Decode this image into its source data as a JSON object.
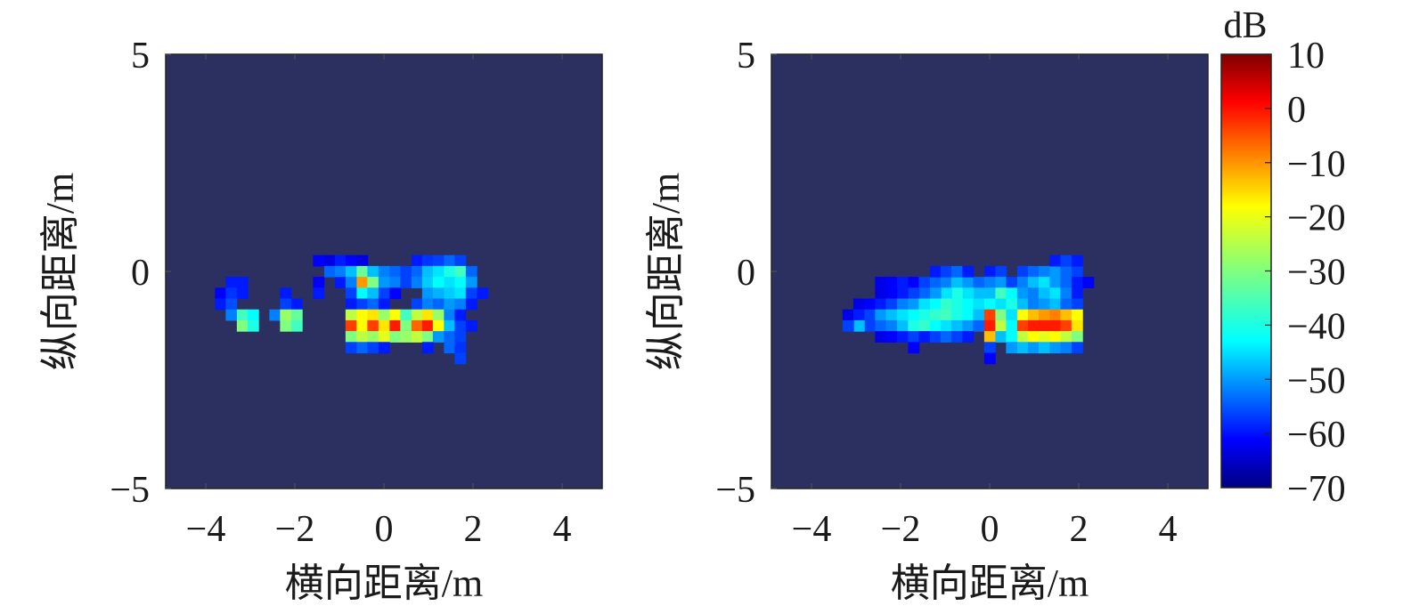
{
  "chart_data": [
    {
      "type": "heatmap",
      "xlabel": "横向距离/m",
      "ylabel": "纵向距离/m",
      "xlim": [
        -4.9,
        4.9
      ],
      "ylim": [
        -5,
        5
      ],
      "xticks": [
        -4,
        -2,
        0,
        2,
        4
      ],
      "xtick_labels": [
        "−4",
        "−2",
        "0",
        "2",
        "4"
      ],
      "yticks": [
        -5,
        0,
        5
      ],
      "ytick_labels": [
        "−5",
        "0",
        "5"
      ],
      "cell_size": [
        0.245,
        0.25
      ],
      "background_db": -70,
      "cells": [
        [
          -3.43,
          -0.25,
          -58
        ],
        [
          -3.18,
          -0.25,
          -58
        ],
        [
          -3.67,
          -0.5,
          -60
        ],
        [
          -3.43,
          -0.5,
          -56
        ],
        [
          -3.18,
          -0.5,
          -58
        ],
        [
          -3.67,
          -0.75,
          -58
        ],
        [
          -3.43,
          -0.75,
          -54
        ],
        [
          -3.43,
          -1.0,
          -50
        ],
        [
          -3.18,
          -1.0,
          -35
        ],
        [
          -2.94,
          -1.0,
          -40
        ],
        [
          -3.18,
          -1.25,
          -30
        ],
        [
          -2.94,
          -1.25,
          -38
        ],
        [
          -2.21,
          -0.5,
          -58
        ],
        [
          -2.21,
          -0.75,
          -55
        ],
        [
          -1.96,
          -0.75,
          -58
        ],
        [
          -2.45,
          -1.0,
          -50
        ],
        [
          -2.21,
          -1.0,
          -28
        ],
        [
          -1.96,
          -1.0,
          -32
        ],
        [
          -2.21,
          -1.25,
          -30
        ],
        [
          -1.96,
          -1.25,
          -35
        ],
        [
          -1.47,
          -0.25,
          -60
        ],
        [
          -1.47,
          -0.5,
          -58
        ],
        [
          -1.47,
          0.25,
          -60
        ],
        [
          -1.22,
          0.25,
          -62
        ],
        [
          -0.98,
          0.25,
          -58
        ],
        [
          -0.74,
          0.25,
          -60
        ],
        [
          -0.49,
          0.25,
          -62
        ],
        [
          -1.22,
          0.0,
          -52
        ],
        [
          -0.98,
          0.0,
          -50
        ],
        [
          -0.74,
          0.0,
          -45
        ],
        [
          -0.49,
          0.0,
          -32
        ],
        [
          -0.25,
          0.0,
          -45
        ],
        [
          0.0,
          0.0,
          -50
        ],
        [
          0.25,
          0.0,
          -52
        ],
        [
          0.49,
          0.0,
          -55
        ],
        [
          -0.98,
          -0.25,
          -58
        ],
        [
          -0.74,
          -0.25,
          -50
        ],
        [
          -0.49,
          -0.25,
          -12
        ],
        [
          -0.25,
          -0.25,
          -30
        ],
        [
          0.0,
          -0.25,
          -48
        ],
        [
          0.25,
          -0.25,
          -50
        ],
        [
          0.49,
          -0.25,
          -55
        ],
        [
          -0.74,
          -0.5,
          -55
        ],
        [
          -0.49,
          -0.5,
          -40
        ],
        [
          -0.25,
          -0.5,
          -45
        ],
        [
          0.0,
          -0.5,
          -55
        ],
        [
          0.25,
          -0.5,
          -60
        ],
        [
          -0.74,
          -0.75,
          -58
        ],
        [
          -0.49,
          -0.75,
          -55
        ],
        [
          -0.25,
          -0.75,
          -52
        ],
        [
          0.0,
          -0.75,
          -58
        ],
        [
          0.74,
          0.25,
          -58
        ],
        [
          0.98,
          0.25,
          -56
        ],
        [
          1.22,
          0.25,
          -55
        ],
        [
          1.47,
          0.25,
          -52
        ],
        [
          1.71,
          0.25,
          -55
        ],
        [
          0.74,
          0.0,
          -52
        ],
        [
          0.98,
          0.0,
          -45
        ],
        [
          1.22,
          0.0,
          -42
        ],
        [
          1.47,
          0.0,
          -38
        ],
        [
          1.71,
          0.0,
          -35
        ],
        [
          1.96,
          0.0,
          -52
        ],
        [
          0.74,
          -0.25,
          -50
        ],
        [
          0.98,
          -0.25,
          -44
        ],
        [
          1.22,
          -0.25,
          -40
        ],
        [
          1.47,
          -0.25,
          -42
        ],
        [
          1.71,
          -0.25,
          -40
        ],
        [
          1.96,
          -0.25,
          -48
        ],
        [
          0.98,
          -0.5,
          -48
        ],
        [
          1.22,
          -0.5,
          -46
        ],
        [
          1.47,
          -0.5,
          -44
        ],
        [
          1.71,
          -0.5,
          -42
        ],
        [
          1.96,
          -0.5,
          -55
        ],
        [
          2.21,
          -0.5,
          -58
        ],
        [
          0.74,
          -0.75,
          -55
        ],
        [
          0.98,
          -0.75,
          -50
        ],
        [
          1.22,
          -0.75,
          -52
        ],
        [
          1.47,
          -0.75,
          -48
        ],
        [
          1.71,
          -0.75,
          -50
        ],
        [
          1.96,
          -0.75,
          -58
        ],
        [
          -0.74,
          -1.0,
          -25
        ],
        [
          -0.49,
          -1.0,
          -20
        ],
        [
          -0.25,
          -1.0,
          -18
        ],
        [
          0.0,
          -1.0,
          -28
        ],
        [
          0.25,
          -1.0,
          -20
        ],
        [
          0.49,
          -1.0,
          -35
        ],
        [
          0.74,
          -1.0,
          -25
        ],
        [
          0.98,
          -1.0,
          -18
        ],
        [
          1.22,
          -1.0,
          -28
        ],
        [
          1.47,
          -1.0,
          -50
        ],
        [
          -0.74,
          -1.25,
          -5
        ],
        [
          -0.49,
          -1.25,
          -20
        ],
        [
          -0.25,
          -1.25,
          -5
        ],
        [
          0.0,
          -1.25,
          -18
        ],
        [
          0.25,
          -1.25,
          -2
        ],
        [
          0.49,
          -1.25,
          -30
        ],
        [
          0.74,
          -1.25,
          -8
        ],
        [
          0.98,
          -1.25,
          -2
        ],
        [
          1.22,
          -1.25,
          -20
        ],
        [
          1.47,
          -1.25,
          -45
        ],
        [
          -0.74,
          -1.5,
          -30
        ],
        [
          -0.49,
          -1.5,
          -25
        ],
        [
          -0.25,
          -1.5,
          -28
        ],
        [
          0.0,
          -1.5,
          -22
        ],
        [
          0.25,
          -1.5,
          -30
        ],
        [
          0.49,
          -1.5,
          -28
        ],
        [
          0.74,
          -1.5,
          -25
        ],
        [
          0.98,
          -1.5,
          -30
        ],
        [
          1.22,
          -1.5,
          -48
        ],
        [
          1.47,
          -1.5,
          -52
        ],
        [
          1.71,
          -1.5,
          -55
        ],
        [
          -0.74,
          -1.75,
          -55
        ],
        [
          -0.49,
          -1.75,
          -52
        ],
        [
          -0.25,
          -1.75,
          -55
        ],
        [
          0.0,
          -1.75,
          -58
        ],
        [
          0.98,
          -1.75,
          -58
        ],
        [
          1.47,
          -1.75,
          -52
        ],
        [
          1.71,
          -1.75,
          -56
        ],
        [
          1.71,
          -2.0,
          -55
        ],
        [
          1.71,
          -1.25,
          -55
        ],
        [
          1.96,
          -1.25,
          -58
        ],
        [
          1.71,
          -1.0,
          -58
        ]
      ]
    },
    {
      "type": "heatmap",
      "xlabel": "横向距离/m",
      "ylabel": "纵向距离/m",
      "xlim": [
        -4.9,
        4.9
      ],
      "ylim": [
        -5,
        5
      ],
      "xticks": [
        -4,
        -2,
        0,
        2,
        4
      ],
      "xtick_labels": [
        "−4",
        "−2",
        "0",
        "2",
        "4"
      ],
      "yticks": [
        -5,
        0,
        5
      ],
      "ytick_labels": [
        "−5",
        "0",
        "5"
      ],
      "cell_size": [
        0.245,
        0.25
      ],
      "background_db": -70,
      "cells": [
        [
          -2.45,
          -0.25,
          -62
        ],
        [
          -2.21,
          -0.25,
          -60
        ],
        [
          -1.96,
          -0.25,
          -58
        ],
        [
          -1.71,
          -0.25,
          -60
        ],
        [
          -1.47,
          -0.25,
          -55
        ],
        [
          -1.22,
          -0.25,
          -52
        ],
        [
          -0.98,
          -0.25,
          -50
        ],
        [
          -0.74,
          -0.25,
          -45
        ],
        [
          -0.49,
          -0.25,
          -48
        ],
        [
          -0.25,
          -0.25,
          -52
        ],
        [
          -1.22,
          0.0,
          -58
        ],
        [
          -0.98,
          0.0,
          -55
        ],
        [
          -0.74,
          0.0,
          -52
        ],
        [
          -0.49,
          0.0,
          -58
        ],
        [
          -0.25,
          -0.5,
          -45
        ],
        [
          -0.49,
          -0.5,
          -42
        ],
        [
          -0.74,
          -0.5,
          -38
        ],
        [
          -0.98,
          -0.5,
          -42
        ],
        [
          -1.22,
          -0.5,
          -48
        ],
        [
          -1.47,
          -0.5,
          -52
        ],
        [
          -1.71,
          -0.5,
          -55
        ],
        [
          -1.96,
          -0.5,
          -58
        ],
        [
          -2.21,
          -0.5,
          -60
        ],
        [
          -2.45,
          -0.5,
          -62
        ],
        [
          -2.94,
          -0.75,
          -62
        ],
        [
          -2.69,
          -0.75,
          -60
        ],
        [
          -2.45,
          -0.75,
          -58
        ],
        [
          -2.21,
          -0.75,
          -55
        ],
        [
          -1.96,
          -0.75,
          -50
        ],
        [
          -1.71,
          -0.75,
          -48
        ],
        [
          -1.47,
          -0.75,
          -42
        ],
        [
          -1.22,
          -0.75,
          -40
        ],
        [
          -0.98,
          -0.75,
          -36
        ],
        [
          -0.74,
          -0.75,
          -38
        ],
        [
          -0.49,
          -0.75,
          -40
        ],
        [
          -0.25,
          -0.75,
          -42
        ],
        [
          -3.18,
          -1.0,
          -62
        ],
        [
          -2.94,
          -1.0,
          -58
        ],
        [
          -2.69,
          -1.0,
          -55
        ],
        [
          -2.45,
          -1.0,
          -48
        ],
        [
          -2.21,
          -1.0,
          -45
        ],
        [
          -1.96,
          -1.0,
          -42
        ],
        [
          -1.71,
          -1.0,
          -40
        ],
        [
          -1.47,
          -1.0,
          -38
        ],
        [
          -1.22,
          -1.0,
          -36
        ],
        [
          -0.98,
          -1.0,
          -35
        ],
        [
          -0.74,
          -1.0,
          -38
        ],
        [
          -0.49,
          -1.0,
          -40
        ],
        [
          -0.25,
          -1.0,
          -45
        ],
        [
          -2.94,
          -1.25,
          -60
        ],
        [
          -2.69,
          -1.25,
          -55
        ],
        [
          -2.45,
          -1.25,
          -52
        ],
        [
          -2.21,
          -1.25,
          -50
        ],
        [
          -1.96,
          -1.25,
          -45
        ],
        [
          -1.71,
          -1.25,
          -38
        ],
        [
          -1.47,
          -1.25,
          -36
        ],
        [
          -1.22,
          -1.25,
          -40
        ],
        [
          -0.98,
          -1.25,
          -42
        ],
        [
          -0.74,
          -1.25,
          -45
        ],
        [
          -0.49,
          -1.25,
          -48
        ],
        [
          -0.25,
          -1.25,
          -52
        ],
        [
          -2.45,
          -1.5,
          -62
        ],
        [
          -2.21,
          -1.5,
          -60
        ],
        [
          -1.96,
          -1.5,
          -58
        ],
        [
          -1.71,
          -1.5,
          -55
        ],
        [
          -1.47,
          -1.5,
          -58
        ],
        [
          -1.22,
          -1.5,
          -55
        ],
        [
          -0.98,
          -1.5,
          -52
        ],
        [
          -0.74,
          -1.5,
          -55
        ],
        [
          -0.49,
          -1.5,
          -58
        ],
        [
          -1.71,
          -1.75,
          -60
        ],
        [
          -2.94,
          -1.25,
          -45
        ],
        [
          -3.18,
          -1.25,
          -55
        ],
        [
          0.0,
          0.0,
          -58
        ],
        [
          0.25,
          0.0,
          -55
        ],
        [
          0.74,
          0.0,
          -55
        ],
        [
          0.98,
          0.0,
          -52
        ],
        [
          1.22,
          0.0,
          -50
        ],
        [
          1.47,
          0.0,
          -48
        ],
        [
          1.71,
          0.0,
          -52
        ],
        [
          1.96,
          0.0,
          -55
        ],
        [
          1.47,
          0.25,
          -58
        ],
        [
          1.71,
          0.25,
          -55
        ],
        [
          1.96,
          0.25,
          -58
        ],
        [
          0.0,
          -0.25,
          -50
        ],
        [
          0.25,
          -0.25,
          -48
        ],
        [
          0.49,
          -0.25,
          -55
        ],
        [
          0.74,
          -0.25,
          -50
        ],
        [
          0.98,
          -0.25,
          -45
        ],
        [
          1.22,
          -0.25,
          -42
        ],
        [
          1.47,
          -0.25,
          -48
        ],
        [
          1.71,
          -0.25,
          -52
        ],
        [
          1.96,
          -0.25,
          -58
        ],
        [
          2.21,
          -0.25,
          -60
        ],
        [
          0.0,
          -0.5,
          -45
        ],
        [
          0.25,
          -0.5,
          -35
        ],
        [
          0.49,
          -0.5,
          -40
        ],
        [
          0.74,
          -0.5,
          -48
        ],
        [
          0.98,
          -0.5,
          -50
        ],
        [
          1.22,
          -0.5,
          -45
        ],
        [
          1.47,
          -0.5,
          -42
        ],
        [
          1.71,
          -0.5,
          -50
        ],
        [
          1.96,
          -0.5,
          -58
        ],
        [
          0.0,
          -0.75,
          -40
        ],
        [
          0.25,
          -0.75,
          -42
        ],
        [
          0.49,
          -0.75,
          -38
        ],
        [
          0.74,
          -0.75,
          -45
        ],
        [
          0.98,
          -0.75,
          -50
        ],
        [
          1.22,
          -0.75,
          -48
        ],
        [
          1.47,
          -0.75,
          -45
        ],
        [
          1.71,
          -0.75,
          -52
        ],
        [
          1.96,
          -0.75,
          -55
        ],
        [
          0.0,
          -1.0,
          -5
        ],
        [
          0.25,
          -1.0,
          -30
        ],
        [
          0.49,
          -1.0,
          -42
        ],
        [
          0.74,
          -1.0,
          -20
        ],
        [
          0.98,
          -1.0,
          -15
        ],
        [
          1.22,
          -1.0,
          -12
        ],
        [
          1.47,
          -1.0,
          -10
        ],
        [
          1.71,
          -1.0,
          -15
        ],
        [
          1.96,
          -1.0,
          -20
        ],
        [
          0.0,
          -1.25,
          -2
        ],
        [
          0.25,
          -1.25,
          -25
        ],
        [
          0.49,
          -1.25,
          -40
        ],
        [
          0.74,
          -1.25,
          -5
        ],
        [
          0.98,
          -1.25,
          -2
        ],
        [
          1.22,
          -1.25,
          -2
        ],
        [
          1.47,
          -1.25,
          -2
        ],
        [
          1.71,
          -1.25,
          -5
        ],
        [
          1.96,
          -1.25,
          -18
        ],
        [
          0.0,
          -1.5,
          -15
        ],
        [
          0.25,
          -1.5,
          -45
        ],
        [
          0.49,
          -1.5,
          -40
        ],
        [
          0.74,
          -1.5,
          -25
        ],
        [
          0.98,
          -1.5,
          -20
        ],
        [
          1.22,
          -1.5,
          -22
        ],
        [
          1.47,
          -1.5,
          -20
        ],
        [
          1.71,
          -1.5,
          -25
        ],
        [
          1.96,
          -1.5,
          -30
        ],
        [
          0.0,
          -1.75,
          -55
        ],
        [
          0.49,
          -1.75,
          -48
        ],
        [
          0.74,
          -1.75,
          -45
        ],
        [
          0.98,
          -1.75,
          -48
        ],
        [
          1.22,
          -1.75,
          -45
        ],
        [
          1.47,
          -1.75,
          -48
        ],
        [
          1.71,
          -1.75,
          -50
        ],
        [
          1.96,
          -1.75,
          -55
        ],
        [
          0.0,
          -2.0,
          -60
        ]
      ]
    }
  ],
  "colorbar": {
    "label": "dB",
    "range": [
      -70,
      10
    ],
    "ticks": [
      10,
      0,
      -10,
      -20,
      -30,
      -40,
      -50,
      -60,
      -70
    ],
    "tick_labels": [
      "10",
      "0",
      "−10",
      "−20",
      "−30",
      "−40",
      "−50",
      "−60",
      "−70"
    ],
    "colormap": "jet",
    "background_color": "#2b3060"
  }
}
